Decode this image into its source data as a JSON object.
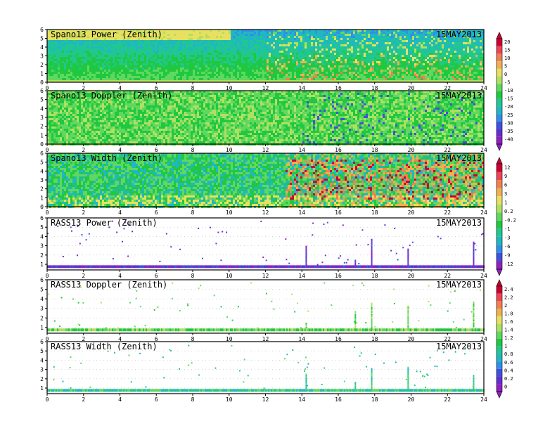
{
  "date_label": "15MAY2013",
  "chart_data": [
    {
      "type": "heatmap",
      "title": "Spano13 Power (Zenith)",
      "date": "15MAY2013",
      "x_ticks": [
        0,
        2,
        4,
        6,
        8,
        10,
        12,
        14,
        16,
        18,
        20,
        22,
        24
      ],
      "y_ticks": [
        0,
        1,
        2,
        3,
        4,
        5,
        6
      ],
      "xlim": [
        0,
        24
      ],
      "ylim": [
        0,
        6
      ],
      "colorbar": "A",
      "field": "spano_power"
    },
    {
      "type": "heatmap",
      "title": "Spano13 Doppler (Zenith)",
      "date": "15MAY2013",
      "x_ticks": [
        0,
        2,
        4,
        6,
        8,
        10,
        12,
        14,
        16,
        18,
        20,
        22,
        24
      ],
      "y_ticks": [
        0,
        1,
        2,
        3,
        4,
        5,
        6
      ],
      "xlim": [
        0,
        24
      ],
      "ylim": [
        0,
        6
      ],
      "colorbar": "A",
      "field": "spano_doppler"
    },
    {
      "type": "heatmap",
      "title": "Spano13 Width (Zenith)",
      "date": "15MAY2013",
      "x_ticks": [
        0,
        2,
        4,
        6,
        8,
        10,
        12,
        14,
        16,
        18,
        20,
        22,
        24
      ],
      "y_ticks": [
        0,
        1,
        2,
        3,
        4,
        5,
        6
      ],
      "xlim": [
        0,
        24
      ],
      "ylim": [
        0,
        6
      ],
      "colorbar": "B",
      "field": "spano_width"
    },
    {
      "type": "scatter",
      "title": "RASS13 Power (Zenith)",
      "date": "15MAY2013",
      "x_ticks": [
        0,
        2,
        4,
        6,
        8,
        10,
        12,
        14,
        16,
        18,
        20,
        22,
        24
      ],
      "y_ticks": [
        1,
        2,
        3,
        4,
        5,
        6
      ],
      "xlim": [
        0,
        24
      ],
      "ylim": [
        0.4,
        6
      ],
      "colorbar": "B",
      "field": "rass_power"
    },
    {
      "type": "scatter",
      "title": "RASS13 Doppler (Zenith)",
      "date": "15MAY2013",
      "x_ticks": [
        0,
        2,
        4,
        6,
        8,
        10,
        12,
        14,
        16,
        18,
        20,
        22,
        24
      ],
      "y_ticks": [
        1,
        2,
        3,
        4,
        5,
        6
      ],
      "xlim": [
        0,
        24
      ],
      "ylim": [
        0.4,
        6
      ],
      "colorbar": "C",
      "field": "rass_doppler"
    },
    {
      "type": "scatter",
      "title": "RASS13 Width (Zenith)",
      "date": "15MAY2013",
      "x_ticks": [
        0,
        2,
        4,
        6,
        8,
        10,
        12,
        14,
        16,
        18,
        20,
        22,
        24
      ],
      "y_ticks": [
        1,
        2,
        3,
        4,
        5,
        6
      ],
      "xlim": [
        0,
        24
      ],
      "ylim": [
        0.4,
        6
      ],
      "colorbar": "C",
      "field": "rass_width"
    }
  ],
  "colorbars": {
    "A": {
      "labels": [
        "20",
        "15",
        "10",
        "5",
        "0",
        "-5",
        "-10",
        "-15",
        "-20",
        "-25",
        "-30",
        "-35",
        "-40"
      ],
      "colors": [
        "#cc0033",
        "#ee4455",
        "#f08050",
        "#f0b050",
        "#e8e060",
        "#b0e060",
        "#60d860",
        "#20c840",
        "#20c890",
        "#20b8c0",
        "#3090e8",
        "#4050e0",
        "#6030d0",
        "#9020c0"
      ]
    },
    "B": {
      "labels": [
        "12",
        "9",
        "6",
        "3",
        "1",
        "0.2",
        "-0.2",
        "-1",
        "-3",
        "-6",
        "-9",
        "-12"
      ],
      "colors": [
        "#cc0033",
        "#ee4455",
        "#f08050",
        "#f0b050",
        "#e8e060",
        "#b0e060",
        "#60d860",
        "#20c840",
        "#20c890",
        "#20b8c0",
        "#3090e8",
        "#4050e0",
        "#9020c0"
      ]
    },
    "C": {
      "labels": [
        "2.4",
        "2.2",
        "2",
        "1.8",
        "1.6",
        "1.4",
        "1.2",
        "1",
        "0.8",
        "0.6",
        "0.4",
        "0.2",
        "0"
      ],
      "colors": [
        "#cc0033",
        "#ee4455",
        "#f08050",
        "#f0b050",
        "#e8e060",
        "#b0e060",
        "#60d860",
        "#20c840",
        "#20c890",
        "#20b8c0",
        "#3090e8",
        "#4050e0",
        "#6030d0",
        "#9020c0"
      ]
    }
  }
}
